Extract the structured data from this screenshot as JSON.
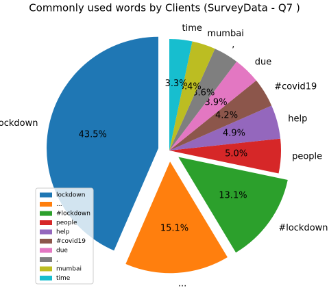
{
  "chart_data": {
    "type": "pie",
    "title": "Commonly used words by Clients (SurveyData - Q7 )",
    "categories": [
      "lockdown",
      "...",
      "#lockdown",
      "people",
      "help",
      "#covid19",
      "due",
      ",",
      "mumbai",
      "time"
    ],
    "values": [
      43.5,
      15.1,
      13.1,
      5.0,
      4.9,
      4.2,
      3.9,
      3.6,
      3.4,
      3.3
    ],
    "value_labels": [
      "43.5%",
      "15.1%",
      "13.1%",
      "5.0%",
      "4.9%",
      "4.2%",
      "3.9%",
      "3.6%",
      "3.4%",
      "3.3%"
    ],
    "colors": [
      "#1f77b4",
      "#ff7f0e",
      "#2ca02c",
      "#d62728",
      "#9467bd",
      "#8c564b",
      "#e377c2",
      "#7f7f7f",
      "#bcbd22",
      "#17becf"
    ],
    "explode": [
      0.1,
      0.1,
      0.1,
      0,
      0,
      0,
      0,
      0,
      0,
      0
    ],
    "legend": "lower left"
  }
}
